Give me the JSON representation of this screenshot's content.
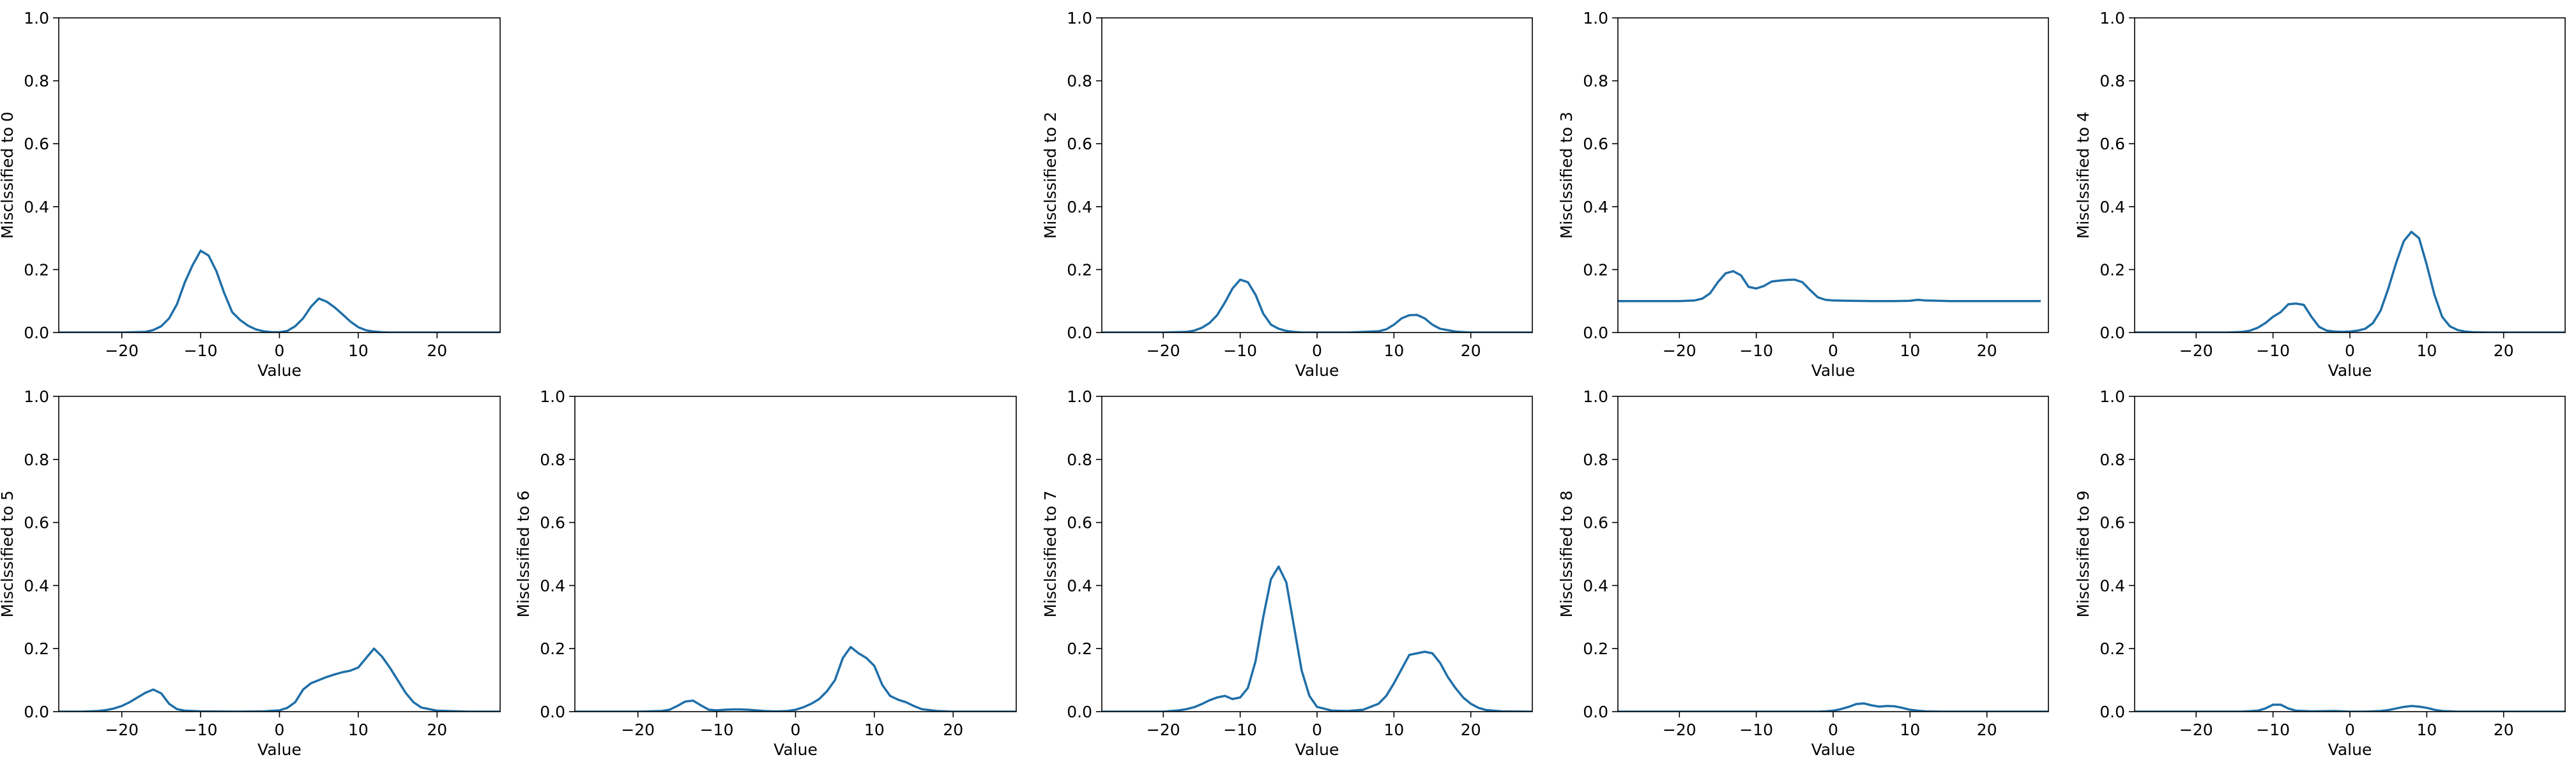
{
  "chart_data": [
    {
      "type": "line",
      "xlabel": "Value",
      "ylabel": "Misclssified to 0",
      "xlim": [
        -28,
        28
      ],
      "ylim": [
        0,
        1
      ],
      "xticks": [
        -20,
        -10,
        0,
        10,
        20
      ],
      "yticks": [
        0.0,
        0.2,
        0.4,
        0.6,
        0.8,
        1.0
      ],
      "xtick_labels": [
        "−20",
        "−10",
        "0",
        "10",
        "20"
      ],
      "ytick_labels": [
        "0.0",
        "0.2",
        "0.4",
        "0.6",
        "0.8",
        "1.0"
      ],
      "x": [
        -28,
        -20,
        -17,
        -16,
        -15,
        -14,
        -13,
        -12,
        -11,
        -10,
        -9,
        -8,
        -7,
        -6,
        -5,
        -4,
        -3,
        -2,
        -1,
        0,
        1,
        2,
        3,
        4,
        5,
        6,
        7,
        8,
        9,
        10,
        11,
        12,
        13,
        14,
        16,
        20,
        28
      ],
      "y": [
        0,
        0,
        0.002,
        0.008,
        0.02,
        0.045,
        0.09,
        0.16,
        0.215,
        0.26,
        0.245,
        0.195,
        0.125,
        0.065,
        0.04,
        0.022,
        0.01,
        0.004,
        0.001,
        0.001,
        0.005,
        0.02,
        0.045,
        0.082,
        0.108,
        0.098,
        0.08,
        0.058,
        0.035,
        0.017,
        0.007,
        0.003,
        0.001,
        0,
        0,
        0,
        0
      ]
    },
    {
      "type": "line",
      "xlabel": "Value",
      "ylabel": "Misclssified to 2",
      "xlim": [
        -28,
        28
      ],
      "ylim": [
        0,
        1
      ],
      "xticks": [
        -20,
        -10,
        0,
        10,
        20
      ],
      "yticks": [
        0.0,
        0.2,
        0.4,
        0.6,
        0.8,
        1.0
      ],
      "xtick_labels": [
        "−20",
        "−10",
        "0",
        "10",
        "20"
      ],
      "ytick_labels": [
        "0.0",
        "0.2",
        "0.4",
        "0.6",
        "0.8",
        "1.0"
      ],
      "x": [
        -28,
        -20,
        -17,
        -16,
        -15,
        -14,
        -13,
        -12,
        -11,
        -10,
        -9,
        -8,
        -7,
        -6,
        -5,
        -4,
        -3,
        -2,
        0,
        2,
        4,
        6,
        8,
        9,
        10,
        11,
        12,
        13,
        14,
        15,
        16,
        18,
        20,
        28
      ],
      "y": [
        0,
        0,
        0.002,
        0.006,
        0.015,
        0.03,
        0.055,
        0.095,
        0.14,
        0.168,
        0.16,
        0.12,
        0.06,
        0.025,
        0.012,
        0.005,
        0.002,
        0,
        0,
        0,
        0,
        0.002,
        0.004,
        0.01,
        0.025,
        0.045,
        0.055,
        0.056,
        0.045,
        0.025,
        0.012,
        0.003,
        0,
        0
      ]
    },
    {
      "type": "line",
      "xlabel": "Value",
      "ylabel": "Misclssified to 3",
      "xlim": [
        -28,
        28
      ],
      "ylim": [
        0,
        1
      ],
      "xticks": [
        -20,
        -10,
        0,
        10,
        20
      ],
      "yticks": [
        0.0,
        0.2,
        0.4,
        0.6,
        0.8,
        1.0
      ],
      "xtick_labels": [
        "−20",
        "−10",
        "0",
        "10",
        "20"
      ],
      "ytick_labels": [
        "0.0",
        "0.2",
        "0.4",
        "0.6",
        "0.8",
        "1.0"
      ],
      "x": [
        -28,
        -24,
        -20,
        -18,
        -17,
        -16,
        -15,
        -14,
        -13,
        -12,
        -11,
        -10,
        -9,
        -8,
        -7,
        -6,
        -5,
        -4,
        -3,
        -2,
        -1,
        0,
        2,
        5,
        8,
        10,
        11,
        12,
        15,
        20,
        27
      ],
      "y": [
        0.1,
        0.1,
        0.1,
        0.102,
        0.108,
        0.125,
        0.16,
        0.188,
        0.195,
        0.182,
        0.145,
        0.14,
        0.148,
        0.162,
        0.165,
        0.167,
        0.168,
        0.16,
        0.135,
        0.112,
        0.104,
        0.102,
        0.101,
        0.1,
        0.1,
        0.101,
        0.104,
        0.102,
        0.1,
        0.1,
        0.1
      ]
    },
    {
      "type": "line",
      "xlabel": "Value",
      "ylabel": "Misclssified to 4",
      "xlim": [
        -28,
        28
      ],
      "ylim": [
        0,
        1
      ],
      "xticks": [
        -20,
        -10,
        0,
        10,
        20
      ],
      "yticks": [
        0.0,
        0.2,
        0.4,
        0.6,
        0.8,
        1.0
      ],
      "xtick_labels": [
        "−20",
        "−10",
        "0",
        "10",
        "20"
      ],
      "ytick_labels": [
        "0.0",
        "0.2",
        "0.4",
        "0.6",
        "0.8",
        "1.0"
      ],
      "x": [
        -28,
        -16,
        -14,
        -13,
        -12,
        -11,
        -10,
        -9,
        -8,
        -7,
        -6,
        -5,
        -4,
        -3,
        -2,
        -1,
        0,
        1,
        2,
        3,
        4,
        5,
        6,
        7,
        8,
        9,
        10,
        11,
        12,
        13,
        14,
        15,
        16,
        18,
        28
      ],
      "y": [
        0,
        0,
        0.002,
        0.006,
        0.015,
        0.03,
        0.05,
        0.065,
        0.09,
        0.092,
        0.088,
        0.05,
        0.018,
        0.006,
        0.003,
        0.002,
        0.003,
        0.006,
        0.012,
        0.03,
        0.07,
        0.14,
        0.22,
        0.29,
        0.32,
        0.3,
        0.215,
        0.12,
        0.05,
        0.02,
        0.008,
        0.003,
        0.001,
        0,
        0
      ]
    },
    {
      "type": "line",
      "xlabel": "Value",
      "ylabel": "Misclssified to 5",
      "xlim": [
        -28,
        28
      ],
      "ylim": [
        0,
        1
      ],
      "xticks": [
        -20,
        -10,
        0,
        10,
        20
      ],
      "yticks": [
        0.0,
        0.2,
        0.4,
        0.6,
        0.8,
        1.0
      ],
      "xtick_labels": [
        "−20",
        "−10",
        "0",
        "10",
        "20"
      ],
      "ytick_labels": [
        "0.0",
        "0.2",
        "0.4",
        "0.6",
        "0.8",
        "1.0"
      ],
      "x": [
        -28,
        -25,
        -23,
        -22,
        -21,
        -20,
        -19,
        -18,
        -17,
        -16,
        -15,
        -14,
        -13,
        -12,
        -10,
        -5,
        -2,
        0,
        1,
        2,
        3,
        4,
        5,
        6,
        7,
        8,
        9,
        10,
        11,
        12,
        13,
        14,
        15,
        16,
        17,
        18,
        20,
        24,
        28
      ],
      "y": [
        0,
        0,
        0.002,
        0.005,
        0.01,
        0.018,
        0.03,
        0.045,
        0.06,
        0.07,
        0.058,
        0.025,
        0.008,
        0.003,
        0.001,
        0,
        0.001,
        0.004,
        0.012,
        0.03,
        0.07,
        0.09,
        0.1,
        0.11,
        0.118,
        0.125,
        0.13,
        0.14,
        0.17,
        0.2,
        0.175,
        0.14,
        0.1,
        0.06,
        0.03,
        0.013,
        0.003,
        0,
        0
      ]
    },
    {
      "type": "line",
      "xlabel": "Value",
      "ylabel": "Misclssified to 6",
      "xlim": [
        -28,
        28
      ],
      "ylim": [
        0,
        1
      ],
      "xticks": [
        -20,
        -10,
        0,
        10,
        20
      ],
      "yticks": [
        0.0,
        0.2,
        0.4,
        0.6,
        0.8,
        1.0
      ],
      "xtick_labels": [
        "−20",
        "−10",
        "0",
        "10",
        "20"
      ],
      "ytick_labels": [
        "0.0",
        "0.2",
        "0.4",
        "0.6",
        "0.8",
        "1.0"
      ],
      "x": [
        -28,
        -20,
        -17,
        -16,
        -15,
        -14,
        -13,
        -12,
        -11,
        -10,
        -9,
        -8,
        -7,
        -6,
        -5,
        -4,
        -3,
        -2,
        -1,
        0,
        1,
        2,
        3,
        4,
        5,
        6,
        7,
        8,
        9,
        10,
        11,
        12,
        13,
        14,
        15,
        16,
        18,
        20,
        28
      ],
      "y": [
        0,
        0,
        0.002,
        0.006,
        0.018,
        0.032,
        0.035,
        0.02,
        0.006,
        0.004,
        0.006,
        0.007,
        0.007,
        0.006,
        0.004,
        0.002,
        0.001,
        0.001,
        0.002,
        0.006,
        0.014,
        0.025,
        0.04,
        0.065,
        0.1,
        0.17,
        0.205,
        0.185,
        0.17,
        0.145,
        0.085,
        0.05,
        0.038,
        0.03,
        0.018,
        0.008,
        0.002,
        0,
        0
      ]
    },
    {
      "type": "line",
      "xlabel": "Value",
      "ylabel": "Misclssified to 7",
      "xlim": [
        -28,
        28
      ],
      "ylim": [
        0,
        1
      ],
      "xticks": [
        -20,
        -10,
        0,
        10,
        20
      ],
      "yticks": [
        0.0,
        0.2,
        0.4,
        0.6,
        0.8,
        1.0
      ],
      "xtick_labels": [
        "−20",
        "−10",
        "0",
        "10",
        "20"
      ],
      "ytick_labels": [
        "0.0",
        "0.2",
        "0.4",
        "0.6",
        "0.8",
        "1.0"
      ],
      "x": [
        -28,
        -20,
        -18,
        -17,
        -16,
        -15,
        -14,
        -13,
        -12,
        -11,
        -10,
        -9,
        -8,
        -7,
        -6,
        -5,
        -4,
        -3,
        -2,
        -1,
        0,
        2,
        4,
        6,
        8,
        9,
        10,
        11,
        12,
        13,
        14,
        15,
        16,
        17,
        18,
        19,
        20,
        21,
        22,
        24,
        28
      ],
      "y": [
        0,
        0,
        0.004,
        0.008,
        0.014,
        0.024,
        0.036,
        0.045,
        0.05,
        0.04,
        0.045,
        0.075,
        0.16,
        0.3,
        0.42,
        0.46,
        0.41,
        0.27,
        0.13,
        0.05,
        0.015,
        0.003,
        0.002,
        0.006,
        0.025,
        0.05,
        0.09,
        0.135,
        0.18,
        0.185,
        0.19,
        0.185,
        0.155,
        0.11,
        0.075,
        0.045,
        0.025,
        0.012,
        0.005,
        0.001,
        0
      ]
    },
    {
      "type": "line",
      "xlabel": "Value",
      "ylabel": "Misclssified to 8",
      "xlim": [
        -28,
        28
      ],
      "ylim": [
        0,
        1
      ],
      "xticks": [
        -20,
        -10,
        0,
        10,
        20
      ],
      "yticks": [
        0.0,
        0.2,
        0.4,
        0.6,
        0.8,
        1.0
      ],
      "xtick_labels": [
        "−20",
        "−10",
        "0",
        "10",
        "20"
      ],
      "ytick_labels": [
        "0.0",
        "0.2",
        "0.4",
        "0.6",
        "0.8",
        "1.0"
      ],
      "x": [
        -28,
        -20,
        -5,
        -2,
        -1,
        0,
        1,
        2,
        3,
        4,
        5,
        6,
        7,
        8,
        9,
        10,
        11,
        12,
        14,
        20,
        28
      ],
      "y": [
        0,
        0,
        0,
        0,
        0.001,
        0.003,
        0.008,
        0.015,
        0.024,
        0.026,
        0.02,
        0.016,
        0.018,
        0.017,
        0.012,
        0.006,
        0.003,
        0.001,
        0,
        0,
        0
      ]
    },
    {
      "type": "line",
      "xlabel": "Value",
      "ylabel": "Misclssified to 9",
      "xlim": [
        -28,
        28
      ],
      "ylim": [
        0,
        1
      ],
      "xticks": [
        -20,
        -10,
        0,
        10,
        20
      ],
      "yticks": [
        0.0,
        0.2,
        0.4,
        0.6,
        0.8,
        1.0
      ],
      "xtick_labels": [
        "−20",
        "−10",
        "0",
        "10",
        "20"
      ],
      "ytick_labels": [
        "0.0",
        "0.2",
        "0.4",
        "0.6",
        "0.8",
        "1.0"
      ],
      "x": [
        -28,
        -14,
        -12,
        -11,
        -10,
        -9,
        -8,
        -7,
        -5,
        -2,
        0,
        2,
        3,
        4,
        5,
        6,
        7,
        8,
        9,
        10,
        11,
        12,
        14,
        28
      ],
      "y": [
        0,
        0,
        0.003,
        0.01,
        0.022,
        0.022,
        0.01,
        0.003,
        0.001,
        0.002,
        0,
        0,
        0.001,
        0.002,
        0.005,
        0.01,
        0.015,
        0.018,
        0.016,
        0.012,
        0.006,
        0.002,
        0,
        0
      ]
    }
  ]
}
